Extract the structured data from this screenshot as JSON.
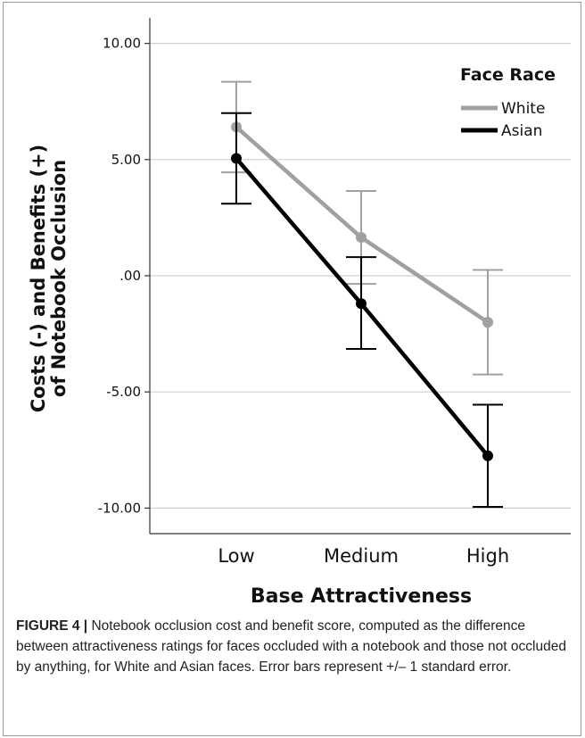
{
  "chart_data": {
    "type": "line",
    "categories": [
      "Low",
      "Medium",
      "High"
    ],
    "series": [
      {
        "name": "White",
        "color": "#a0a0a0",
        "values": [
          6.4,
          1.65,
          -2.0
        ],
        "error_low": [
          4.45,
          -0.35,
          -4.25
        ],
        "error_high": [
          8.35,
          3.65,
          0.25
        ]
      },
      {
        "name": "Asian",
        "color": "#000000",
        "values": [
          5.05,
          -1.2,
          -7.75
        ],
        "error_low": [
          3.1,
          -3.15,
          -9.95
        ],
        "error_high": [
          7.0,
          0.8,
          -5.55
        ]
      }
    ],
    "yticks": [
      10,
      5,
      0,
      -5,
      -10
    ],
    "ytick_labels": [
      "10.00",
      "5.00",
      ".00",
      "-5.00",
      "-10.00"
    ],
    "ylim": [
      -11.1,
      11.1
    ],
    "xlabel": "Base Attractiveness",
    "ylabel_line1": "Costs (-) and Benefits (+)",
    "ylabel_line2": "of Notebook Occlusion",
    "legend_title": "Face Race",
    "legend_position": "top-right",
    "grid": "horizontal"
  },
  "caption": {
    "label": "FIGURE 4 |",
    "text": "Notebook occlusion cost and benefit score, computed as the difference between attractiveness ratings for faces occluded with a notebook and those not occluded by anything, for White and Asian faces. Error bars represent +/– 1 standard error."
  }
}
